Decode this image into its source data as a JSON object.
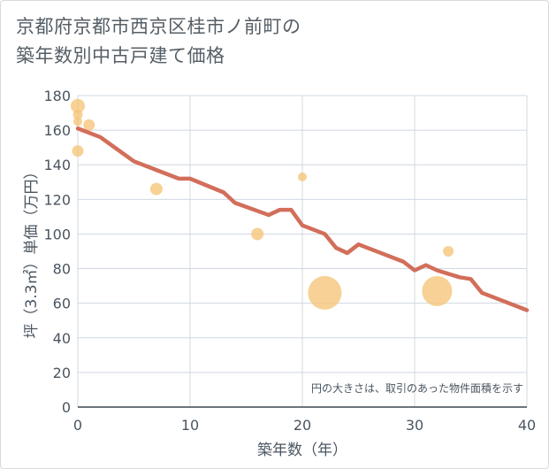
{
  "title_line1": "京都府京都市西京区桂市ノ前町の",
  "title_line2": "築年数別中古戸建て価格",
  "chart_data": {
    "type": "scatter+line",
    "title": "京都府京都市西京区桂市ノ前町の築年数別中古戸建て価格",
    "xlabel": "築年数（年）",
    "ylabel": "坪（3.3㎡）単価（万円）",
    "xlim": [
      0,
      40
    ],
    "ylim": [
      0,
      180
    ],
    "xticks": [
      0,
      10,
      20,
      30,
      40
    ],
    "yticks": [
      0,
      20,
      40,
      60,
      80,
      100,
      120,
      140,
      160,
      180
    ],
    "grid": true,
    "note": "円の大きさは、取引のあった物件面積を示す",
    "colors": {
      "line": "#d26e5a",
      "bubble": "#f5c57a",
      "grid": "#d0d8e0"
    },
    "trend_line": {
      "x": [
        0,
        2,
        5,
        7,
        9,
        10,
        13,
        14,
        17,
        18,
        19,
        20,
        22,
        23,
        24,
        25,
        27,
        29,
        30,
        31,
        32,
        34,
        35,
        36,
        38,
        40
      ],
      "y": [
        161,
        156,
        142,
        137,
        132,
        132,
        124,
        118,
        111,
        114,
        114,
        105,
        100,
        92,
        89,
        94,
        89,
        84,
        79,
        82,
        79,
        75,
        74,
        66,
        61,
        56
      ]
    },
    "bubbles": [
      {
        "x": 0,
        "y": 174,
        "size": 14
      },
      {
        "x": 0,
        "y": 169,
        "size": 9
      },
      {
        "x": 0,
        "y": 165,
        "size": 8
      },
      {
        "x": 1,
        "y": 163,
        "size": 11
      },
      {
        "x": 0,
        "y": 148,
        "size": 11
      },
      {
        "x": 7,
        "y": 126,
        "size": 12
      },
      {
        "x": 16,
        "y": 100,
        "size": 12
      },
      {
        "x": 20,
        "y": 133,
        "size": 8
      },
      {
        "x": 22,
        "y": 66,
        "size": 36
      },
      {
        "x": 32,
        "y": 67,
        "size": 32
      },
      {
        "x": 33,
        "y": 90,
        "size": 10
      }
    ]
  }
}
